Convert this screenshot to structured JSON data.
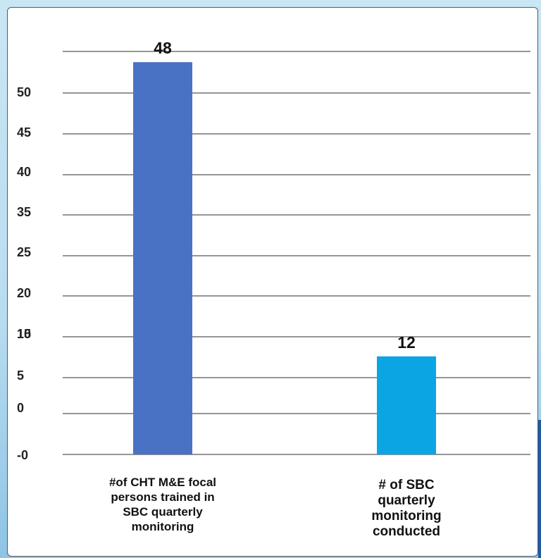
{
  "chart_data": {
    "type": "bar",
    "categories": [
      [
        "#of CHT M&E focal",
        "persons trained in",
        "SBC quarterly",
        "monitoring"
      ],
      [
        "# of SBC",
        "quarterly",
        "monitoring",
        "conducted"
      ]
    ],
    "values": [
      48,
      12
    ],
    "data_labels": [
      "48",
      "12"
    ],
    "colors": [
      "#4a72c4",
      "#0ba5e3"
    ],
    "ytick_labels": [
      "50",
      "45",
      "40",
      "35",
      "25",
      "20",
      "15",
      "10",
      "5",
      "0",
      "-0"
    ],
    "grid": true,
    "legend": "none"
  }
}
